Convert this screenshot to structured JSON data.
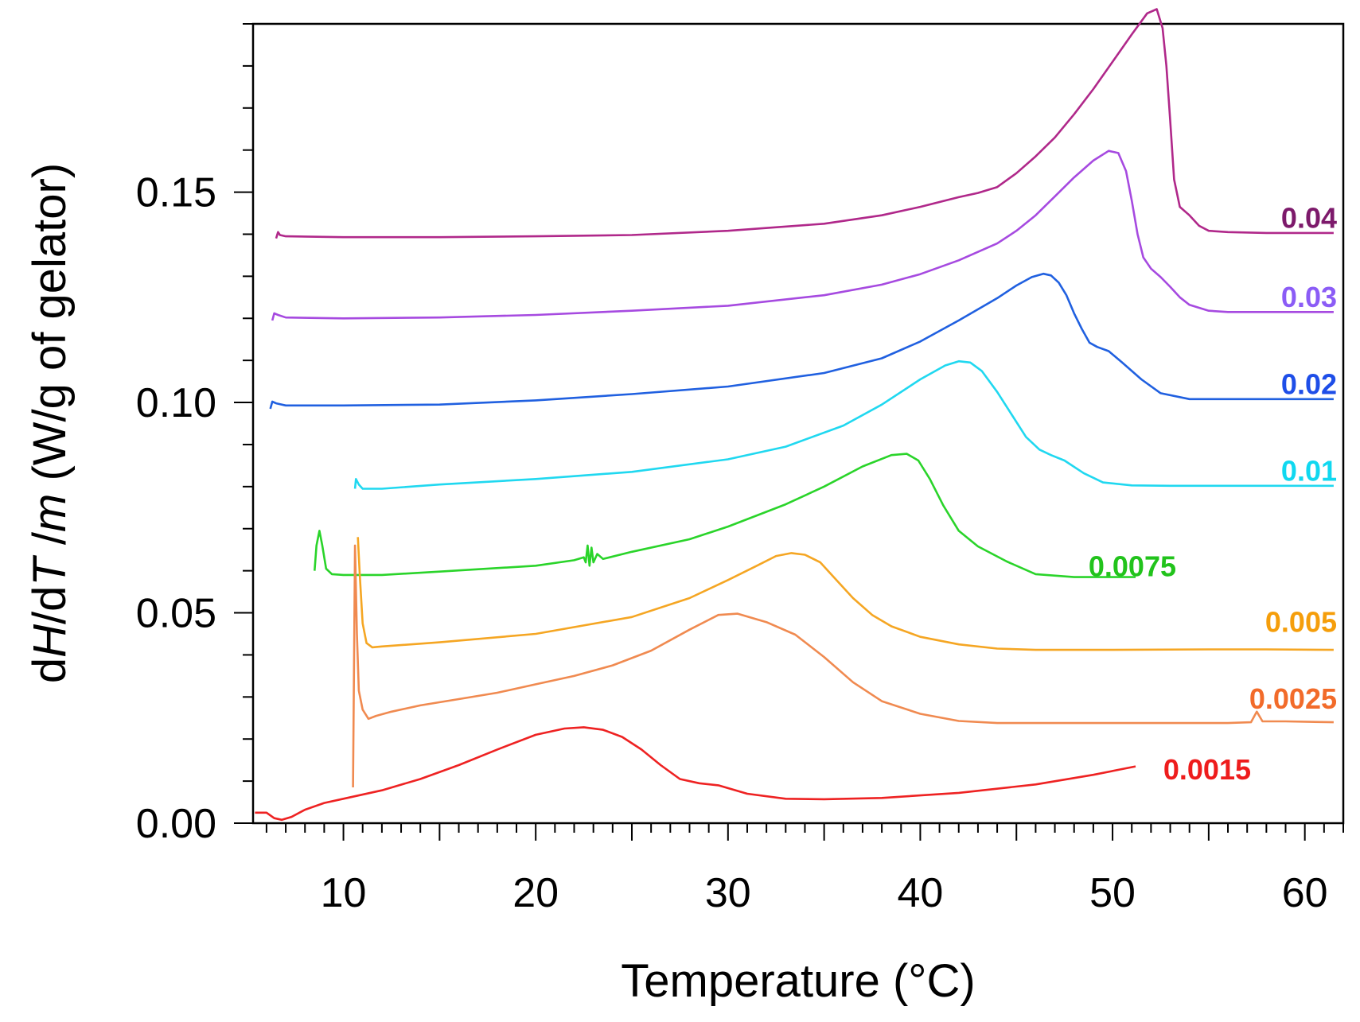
{
  "chart_data": {
    "type": "line",
    "xlabel": "Temperature (°C)",
    "ylabel_parts": [
      "d",
      "H",
      "/d",
      "T",
      " /",
      "m",
      " (W/g of gelator)"
    ],
    "xlim": [
      5.3,
      62
    ],
    "ylim": [
      0,
      0.19
    ],
    "x_ticks": [
      10,
      20,
      30,
      40,
      50,
      60
    ],
    "x_tick_labels": [
      "10",
      "20",
      "30",
      "40",
      "50",
      "60"
    ],
    "y_ticks": [
      0,
      0.05,
      0.1,
      0.15
    ],
    "y_tick_labels": [
      "0.00",
      "0.05",
      "0.10",
      "0.15"
    ],
    "grid": false,
    "series": [
      {
        "name": "0.04",
        "color": "#b0288a",
        "label_color": "#7d1a6b",
        "x": [
          6.5,
          6.6,
          6.7,
          7.0,
          10,
          15,
          20,
          25,
          30,
          35,
          38,
          40,
          42,
          43,
          44,
          45,
          46,
          47,
          48,
          49,
          50,
          51,
          51.8,
          52.3,
          52.6,
          52.8,
          53.0,
          53.2,
          53.5,
          54,
          54.5,
          55,
          56,
          58,
          60,
          61.5
        ],
        "y": [
          0.139,
          0.1405,
          0.1398,
          0.1395,
          0.1393,
          0.1393,
          0.1395,
          0.1398,
          0.1408,
          0.1425,
          0.1445,
          0.1465,
          0.1488,
          0.1498,
          0.1512,
          0.1545,
          0.1585,
          0.163,
          0.1685,
          0.1745,
          0.181,
          0.1875,
          0.1925,
          0.1935,
          0.189,
          0.18,
          0.167,
          0.153,
          0.1465,
          0.1445,
          0.142,
          0.1408,
          0.1405,
          0.1403,
          0.1403,
          0.1403
        ]
      },
      {
        "name": "0.03",
        "color": "#a64ae0",
        "label_color": "#8b5cf6",
        "x": [
          6.3,
          6.4,
          6.6,
          7.0,
          10,
          15,
          20,
          25,
          30,
          35,
          38,
          40,
          42,
          44,
          45,
          46,
          47,
          48,
          49,
          49.8,
          50.3,
          50.7,
          51.0,
          51.3,
          51.6,
          52,
          52.5,
          53,
          53.5,
          54,
          55,
          56,
          58,
          60,
          61.5
        ],
        "y": [
          0.1195,
          0.1212,
          0.1208,
          0.1202,
          0.12,
          0.1202,
          0.1208,
          0.1218,
          0.123,
          0.1255,
          0.128,
          0.1305,
          0.1338,
          0.1378,
          0.1408,
          0.1445,
          0.149,
          0.1535,
          0.1575,
          0.1598,
          0.1593,
          0.155,
          0.148,
          0.14,
          0.1345,
          0.1318,
          0.1298,
          0.1275,
          0.125,
          0.1232,
          0.1218,
          0.1215,
          0.1215,
          0.1215,
          0.1215
        ]
      },
      {
        "name": "0.02",
        "color": "#2060e0",
        "label_color": "#1e4ee8",
        "x": [
          6.2,
          6.3,
          6.5,
          7.0,
          10,
          15,
          20,
          25,
          30,
          35,
          38,
          40,
          42,
          44,
          45,
          45.8,
          46.4,
          46.8,
          47.2,
          47.6,
          48.0,
          48.4,
          48.8,
          49.2,
          49.8,
          50.5,
          51.5,
          52.5,
          54,
          56,
          58,
          60,
          61.5
        ],
        "y": [
          0.0985,
          0.1002,
          0.0998,
          0.0993,
          0.0993,
          0.0995,
          0.1005,
          0.102,
          0.1038,
          0.107,
          0.1105,
          0.1145,
          0.1195,
          0.1248,
          0.1278,
          0.1298,
          0.1306,
          0.1302,
          0.1285,
          0.1255,
          0.1212,
          0.1175,
          0.1142,
          0.1132,
          0.1122,
          0.1095,
          0.1055,
          0.1022,
          0.1008,
          0.1008,
          0.1008,
          0.1008,
          0.1008
        ]
      },
      {
        "name": "0.01",
        "color": "#20d8f0",
        "label_color": "#10d8f0",
        "x": [
          10.6,
          10.65,
          10.8,
          11.0,
          12,
          15,
          20,
          25,
          30,
          33,
          36,
          38,
          40,
          41.3,
          42,
          42.6,
          43.2,
          44,
          44.8,
          45.5,
          46.2,
          46.8,
          47.5,
          48.5,
          49.5,
          51,
          53,
          56,
          59,
          61.5
        ],
        "y": [
          0.0795,
          0.0818,
          0.0805,
          0.0795,
          0.0795,
          0.0805,
          0.0818,
          0.0835,
          0.0865,
          0.0895,
          0.0945,
          0.0995,
          0.1055,
          0.1088,
          0.1098,
          0.1095,
          0.1075,
          0.1025,
          0.0968,
          0.0918,
          0.0888,
          0.0875,
          0.0862,
          0.0832,
          0.081,
          0.0803,
          0.0802,
          0.0802,
          0.0802,
          0.0802
        ]
      },
      {
        "name": "0.0075",
        "color": "#2ad42a",
        "label_color": "#22c31c",
        "x": [
          8.5,
          8.6,
          8.75,
          8.9,
          9.1,
          9.4,
          10,
          12,
          15,
          20,
          22,
          22.5,
          22.6,
          22.7,
          22.8,
          22.9,
          23.0,
          23.2,
          23.5,
          25,
          28,
          30,
          33,
          35,
          37,
          38.5,
          39.3,
          39.9,
          40.5,
          41.2,
          42,
          43,
          44.5,
          46,
          48,
          50,
          51.2
        ],
        "y": [
          0.06,
          0.066,
          0.0695,
          0.066,
          0.0605,
          0.0592,
          0.059,
          0.059,
          0.0598,
          0.0612,
          0.0625,
          0.0632,
          0.062,
          0.066,
          0.0612,
          0.0655,
          0.062,
          0.064,
          0.0628,
          0.0645,
          0.0675,
          0.0705,
          0.0758,
          0.08,
          0.0848,
          0.0875,
          0.0878,
          0.0862,
          0.0818,
          0.0755,
          0.0695,
          0.0658,
          0.0622,
          0.0592,
          0.0585,
          0.0585,
          0.0585
        ]
      },
      {
        "name": "0.005",
        "color": "#f5a623",
        "label_color": "#f59e0b",
        "x": [
          10.75,
          10.85,
          11.0,
          11.2,
          11.5,
          12,
          15,
          20,
          25,
          28,
          30,
          31.5,
          32.5,
          33.3,
          34,
          34.8,
          35.6,
          36.5,
          37.5,
          38.5,
          40,
          42,
          44,
          46,
          50,
          55,
          58,
          61.5
        ],
        "y": [
          0.068,
          0.059,
          0.0475,
          0.0428,
          0.0418,
          0.042,
          0.043,
          0.045,
          0.049,
          0.0535,
          0.0578,
          0.0612,
          0.0635,
          0.0642,
          0.0638,
          0.062,
          0.058,
          0.0535,
          0.0495,
          0.0468,
          0.0443,
          0.0425,
          0.0415,
          0.0412,
          0.0412,
          0.0413,
          0.0413,
          0.0412
        ]
      },
      {
        "name": "0.0025",
        "color": "#f08a50",
        "label_color": "#f26b2a",
        "x": [
          10.5,
          10.6,
          10.7,
          10.8,
          11.0,
          11.3,
          11.7,
          12.5,
          14,
          16,
          18,
          20,
          22,
          24,
          26,
          28,
          29.5,
          30.5,
          32,
          33.5,
          35,
          36.5,
          38,
          40,
          42,
          44,
          47,
          50,
          53,
          56,
          57.2,
          57.5,
          57.8,
          59,
          61.5
        ],
        "y": [
          0.0085,
          0.066,
          0.045,
          0.0315,
          0.027,
          0.0248,
          0.0255,
          0.0265,
          0.028,
          0.0295,
          0.031,
          0.033,
          0.035,
          0.0375,
          0.041,
          0.046,
          0.0495,
          0.0498,
          0.0478,
          0.0448,
          0.0395,
          0.0335,
          0.029,
          0.026,
          0.0243,
          0.0238,
          0.0238,
          0.0238,
          0.0238,
          0.0238,
          0.024,
          0.0265,
          0.0242,
          0.0242,
          0.024
        ]
      },
      {
        "name": "0.0015",
        "color": "#ee2222",
        "label_color": "#ee1c1c",
        "x": [
          5.4,
          6.0,
          6.4,
          6.8,
          7.3,
          8,
          9,
          10,
          12,
          14,
          16,
          18,
          20,
          21.5,
          22.5,
          23.5,
          24.5,
          25.5,
          26.5,
          27.5,
          28.5,
          29.5,
          31,
          33,
          35,
          38,
          42,
          46,
          49,
          51.2
        ],
        "y": [
          0.0025,
          0.0025,
          0.0012,
          0.0008,
          0.0015,
          0.0032,
          0.0048,
          0.0058,
          0.0078,
          0.0105,
          0.0138,
          0.0175,
          0.021,
          0.0225,
          0.0228,
          0.0222,
          0.0205,
          0.0175,
          0.0138,
          0.0105,
          0.0095,
          0.009,
          0.007,
          0.0058,
          0.0057,
          0.006,
          0.0072,
          0.0092,
          0.0115,
          0.0135
        ]
      }
    ]
  }
}
